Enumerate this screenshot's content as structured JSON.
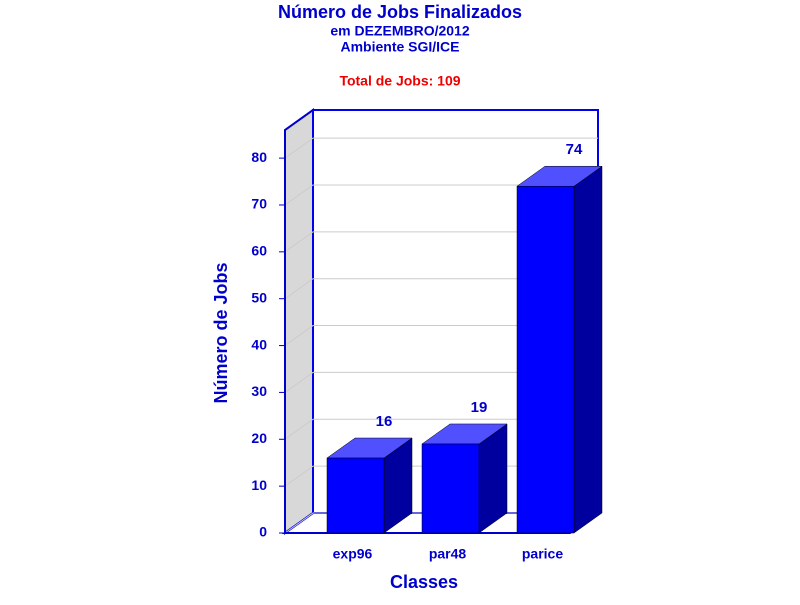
{
  "chart_data": {
    "type": "bar3d",
    "title": "Número de Jobs Finalizados",
    "subtitle": [
      "em DEZEMBRO/2012",
      "Ambiente SGI/ICE"
    ],
    "annotation": "Total de Jobs: 109",
    "x_label": "Classes",
    "y_label": "Número de Jobs",
    "categories": [
      "exp96",
      "par48",
      "parice"
    ],
    "values": [
      16,
      19,
      74
    ],
    "color": "#0000ff",
    "ylim": [
      0,
      86
    ],
    "yticks": [
      0,
      10,
      20,
      30,
      40,
      50,
      60,
      70,
      80
    ],
    "grid": true
  }
}
